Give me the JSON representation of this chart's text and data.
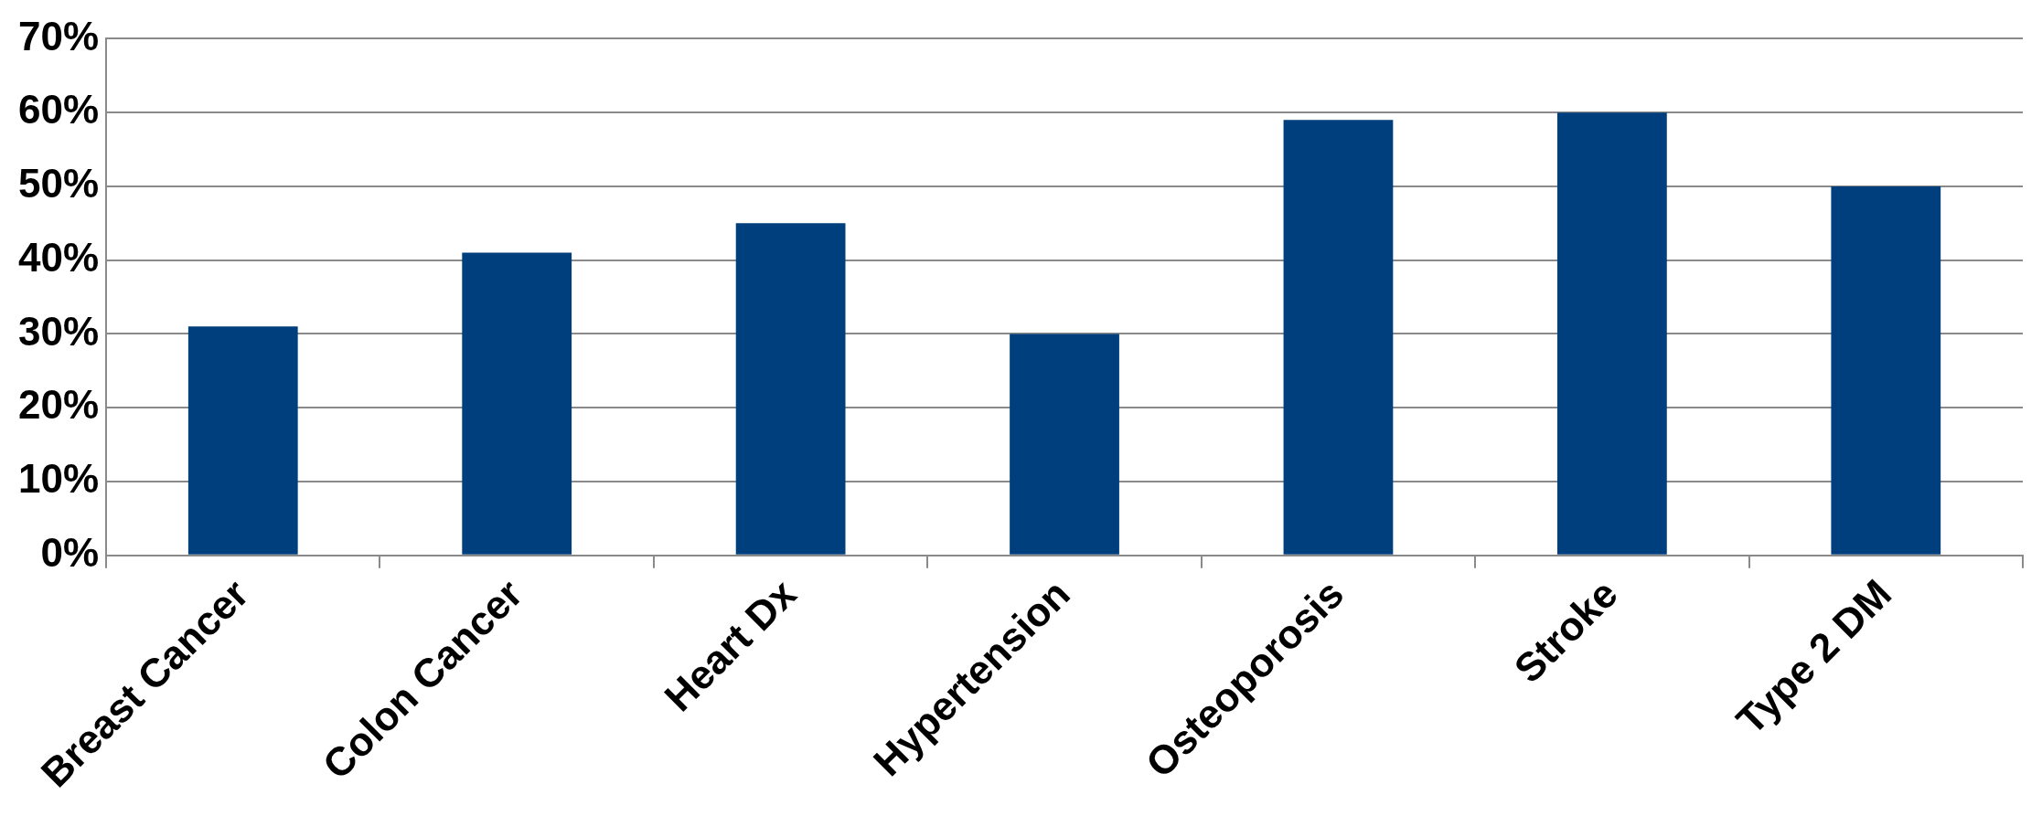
{
  "chart_data": {
    "type": "bar",
    "categories": [
      "Breast Cancer",
      "Colon Cancer",
      "Heart Dx",
      "Hypertension",
      "Osteoporosis",
      "Stroke",
      "Type 2 DM"
    ],
    "values": [
      31,
      41,
      45,
      30,
      59,
      60,
      50
    ],
    "color": "#003f7d",
    "ylim": [
      0,
      70
    ],
    "yticks": [
      {
        "value": 0,
        "label": "0%"
      },
      {
        "value": 10,
        "label": "10%"
      },
      {
        "value": 20,
        "label": "20%"
      },
      {
        "value": 30,
        "label": "30%"
      },
      {
        "value": 40,
        "label": "40%"
      },
      {
        "value": 50,
        "label": "50%"
      },
      {
        "value": 60,
        "label": "60%"
      },
      {
        "value": 70,
        "label": "70%"
      }
    ],
    "grid": "y"
  }
}
